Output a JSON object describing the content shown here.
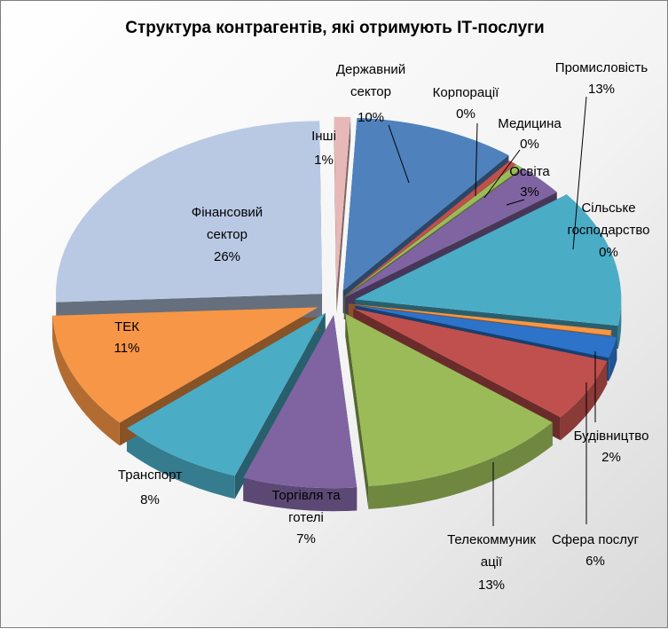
{
  "chart_data": {
    "type": "pie",
    "title": "Структура контрагентів, які отримують ІТ-послуги",
    "slices": [
      {
        "name": "Державний сектор",
        "value": 10,
        "label": "10%",
        "color": "#4f81bd"
      },
      {
        "name": "Корпорації",
        "value": 0.5,
        "label": "0%",
        "color": "#c0504d"
      },
      {
        "name": "Медицина",
        "value": 0.5,
        "label": "0%",
        "color": "#9bbb59"
      },
      {
        "name": "Освіта",
        "value": 3,
        "label": "3%",
        "color": "#8064a2"
      },
      {
        "name": "Промисловість",
        "value": 13,
        "label": "13%",
        "color": "#4bacc6"
      },
      {
        "name": "Сільське господарство",
        "value": 0.5,
        "label": "0%",
        "color": "#f79646"
      },
      {
        "name": "Будівництво",
        "value": 2,
        "label": "2%",
        "color": "#2c73c9"
      },
      {
        "name": "Сфера послуг",
        "value": 6,
        "label": "6%",
        "color": "#c0504d"
      },
      {
        "name": "Телекоммуникації",
        "value": 13,
        "label": "13%",
        "color": "#9bbb59"
      },
      {
        "name": "Торгівля та готелі",
        "value": 7,
        "label": "7%",
        "color": "#8064a2"
      },
      {
        "name": "Транспорт",
        "value": 8,
        "label": "8%",
        "color": "#4bacc6"
      },
      {
        "name": "ТЕК",
        "value": 11,
        "label": "11%",
        "color": "#f79646"
      },
      {
        "name": "Фінансовий сектор",
        "value": 26,
        "label": "26%",
        "color": "#b9c9e4"
      },
      {
        "name": "Інші",
        "value": 1,
        "label": "1%",
        "color": "#e6b9b8"
      }
    ]
  }
}
